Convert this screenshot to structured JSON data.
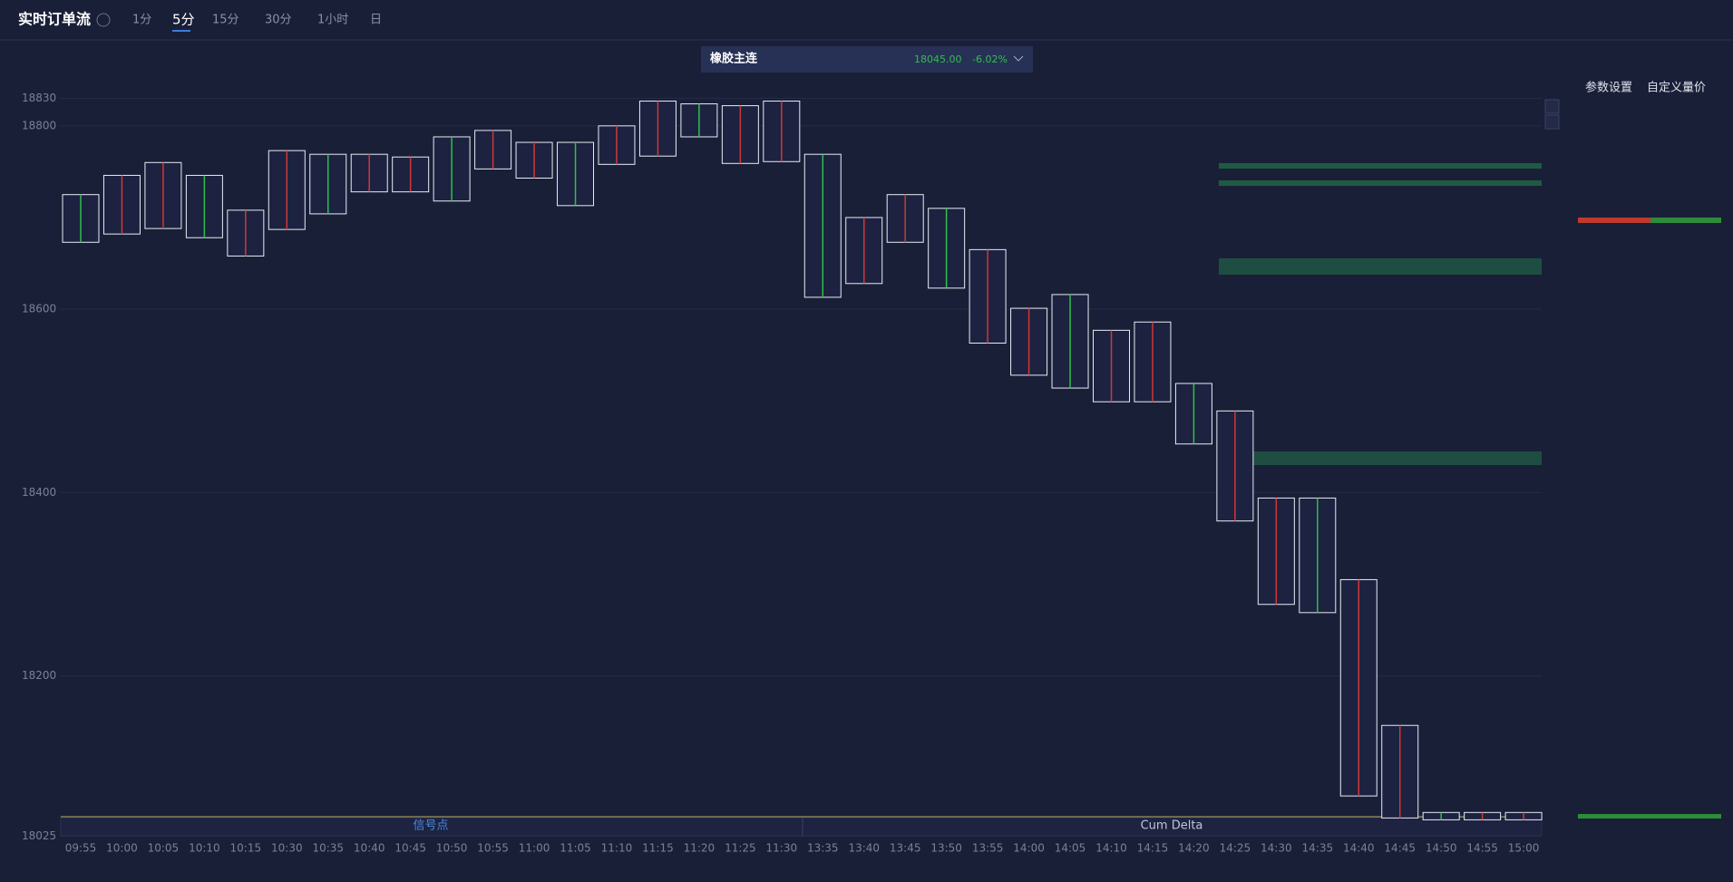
{
  "header": {
    "title": "实时订单流",
    "tabs": [
      "1分",
      "5分",
      "15分",
      "30分",
      "1小时",
      "日"
    ]
  },
  "instrument": {
    "name": "橡胶主连",
    "price": "18045.00",
    "change": "-6.02%"
  },
  "buttons": [
    "参数设置",
    "自定义量价"
  ],
  "chart_data": {
    "type": "footprint",
    "categories": [
      "09:55",
      "10:00",
      "10:05",
      "10:10",
      "10:15",
      "10:30",
      "10:35",
      "10:40",
      "10:45",
      "10:50",
      "10:55",
      "11:00",
      "11:05",
      "11:10",
      "11:15",
      "11:20",
      "11:25",
      "11:30",
      "13:35",
      "13:40",
      "13:45",
      "13:50",
      "13:55",
      "14:00",
      "14:05",
      "14:10",
      "14:15",
      "14:20",
      "14:25",
      "14:30",
      "14:35",
      "14:40",
      "14:45",
      "14:50",
      "14:55",
      "15:00"
    ],
    "series": [
      {
        "name": "high",
        "values": [
          18725,
          18746,
          18760,
          18746,
          18708,
          18773,
          18769,
          18769,
          18766,
          18788,
          18795,
          18782,
          18782,
          18800,
          18827,
          18824,
          18822,
          18827,
          18769,
          18700,
          18725,
          18710,
          18665,
          18601,
          18616,
          18577,
          18586,
          18519,
          18489,
          18394,
          18394,
          18305,
          18146,
          18051,
          18051,
          18051
        ]
      },
      {
        "name": "low",
        "values": [
          18673,
          18682,
          18688,
          18678,
          18658,
          18687,
          18704,
          18728,
          18728,
          18718,
          18753,
          18743,
          18713,
          18758,
          18767,
          18788,
          18759,
          18761,
          18613,
          18628,
          18673,
          18623,
          18563,
          18528,
          18514,
          18499,
          18499,
          18453,
          18369,
          18278,
          18269,
          18069,
          18045,
          18043,
          18043,
          18043
        ]
      }
    ],
    "ylim": [
      18025,
      18830
    ],
    "yticks": [
      18025,
      18200,
      18400,
      18600,
      18800,
      18830
    ],
    "grid": true,
    "box_color": "#e8ecf4",
    "panel_labels": [
      "信号点",
      "Cum Delta"
    ]
  }
}
